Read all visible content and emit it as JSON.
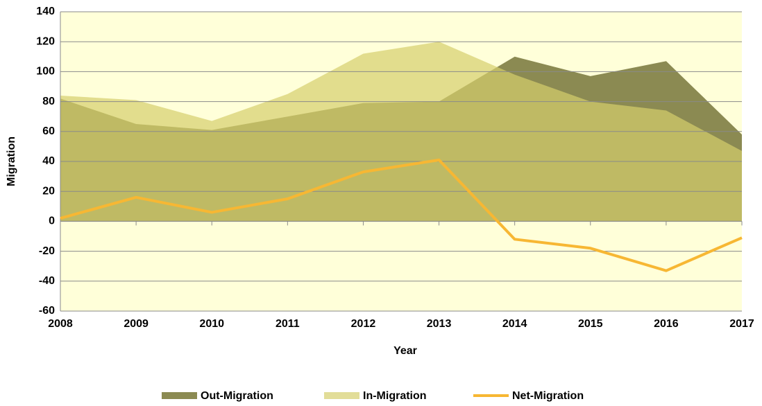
{
  "chart_data": {
    "type": "area",
    "x_label": "Year",
    "y_label": "Migration",
    "categories": [
      "2008",
      "2009",
      "2010",
      "2011",
      "2012",
      "2013",
      "2014",
      "2015",
      "2016",
      "2017"
    ],
    "series": [
      {
        "name": "Out-Migration",
        "type": "area",
        "color": "#8b8a52",
        "values": [
          82,
          65,
          61,
          70,
          79,
          80,
          110,
          97,
          107,
          58
        ]
      },
      {
        "name": "In-Migration",
        "type": "area",
        "color": "#d6cf6c",
        "values": [
          84,
          81,
          67,
          85,
          112,
          120,
          98,
          80,
          74,
          47
        ]
      },
      {
        "name": "Net-Migration",
        "type": "line",
        "color": "#f7b733",
        "values": [
          2,
          16,
          6,
          15,
          33,
          41,
          -12,
          -18,
          -33,
          -11
        ]
      }
    ],
    "ylim": [
      -60,
      140
    ],
    "yticks": [
      -60,
      -40,
      -20,
      0,
      20,
      40,
      60,
      80,
      100,
      120,
      140
    ],
    "grid": true,
    "plot_background": "#ffffd9",
    "legend": "bottom"
  }
}
